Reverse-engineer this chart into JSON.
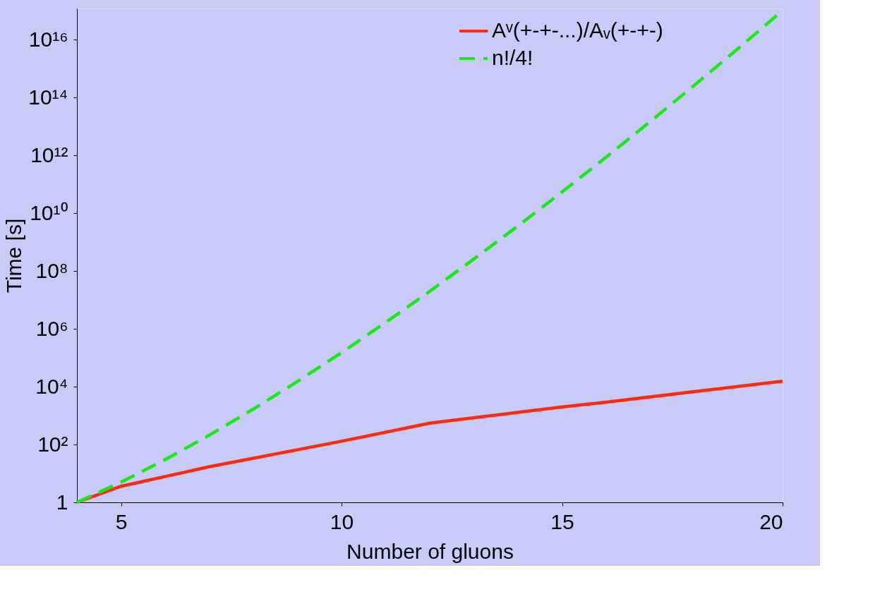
{
  "chart_data": {
    "type": "line",
    "xlabel": "Number of gluons",
    "ylabel": "Time [s]",
    "x": [
      4,
      5,
      6,
      7,
      8,
      9,
      10,
      11,
      12,
      13,
      14,
      15,
      16,
      17,
      18,
      19,
      20
    ],
    "series": [
      {
        "name": "Aᵛ(+-+-...)/Aᵥ(+-+-)",
        "color": "#ff2a0e",
        "line_style": "solid",
        "x": [
          4,
          5,
          7,
          10,
          12,
          15,
          16,
          18,
          20
        ],
        "values": [
          1,
          3.6,
          17,
          130,
          550,
          2000,
          2900,
          6800,
          15500
        ]
      },
      {
        "name": "n!/4!",
        "color": "#1ee61e",
        "line_style": "dashed",
        "values": [
          1,
          5,
          30,
          210,
          1680,
          15120,
          151200,
          1663200,
          19958400,
          259459200,
          3632428800,
          54486432000,
          871782912000,
          14820309504000,
          266765571072000,
          5068545850368000,
          101370917007360000
        ]
      }
    ],
    "xlim": [
      4,
      20
    ],
    "xticks": [
      5,
      10,
      15,
      20
    ],
    "ylim": [
      1,
      1.2e+17
    ],
    "log": "y",
    "yticks": [
      1,
      {
        "value": 100,
        "label": "10²"
      },
      {
        "value": 10000,
        "label": "10⁴"
      },
      {
        "value": 1000000,
        "label": "10⁶"
      },
      {
        "value": 100000000,
        "label": "10⁸"
      },
      {
        "value": 10000000000,
        "label": "10¹⁰"
      },
      {
        "value": 1000000000000,
        "label": "10¹²"
      },
      {
        "value": 100000000000000,
        "label": "10¹⁴"
      },
      {
        "value": 10000000000000000,
        "label": "10¹⁶"
      }
    ],
    "grid": false,
    "legend": "top right",
    "marker": "none"
  }
}
